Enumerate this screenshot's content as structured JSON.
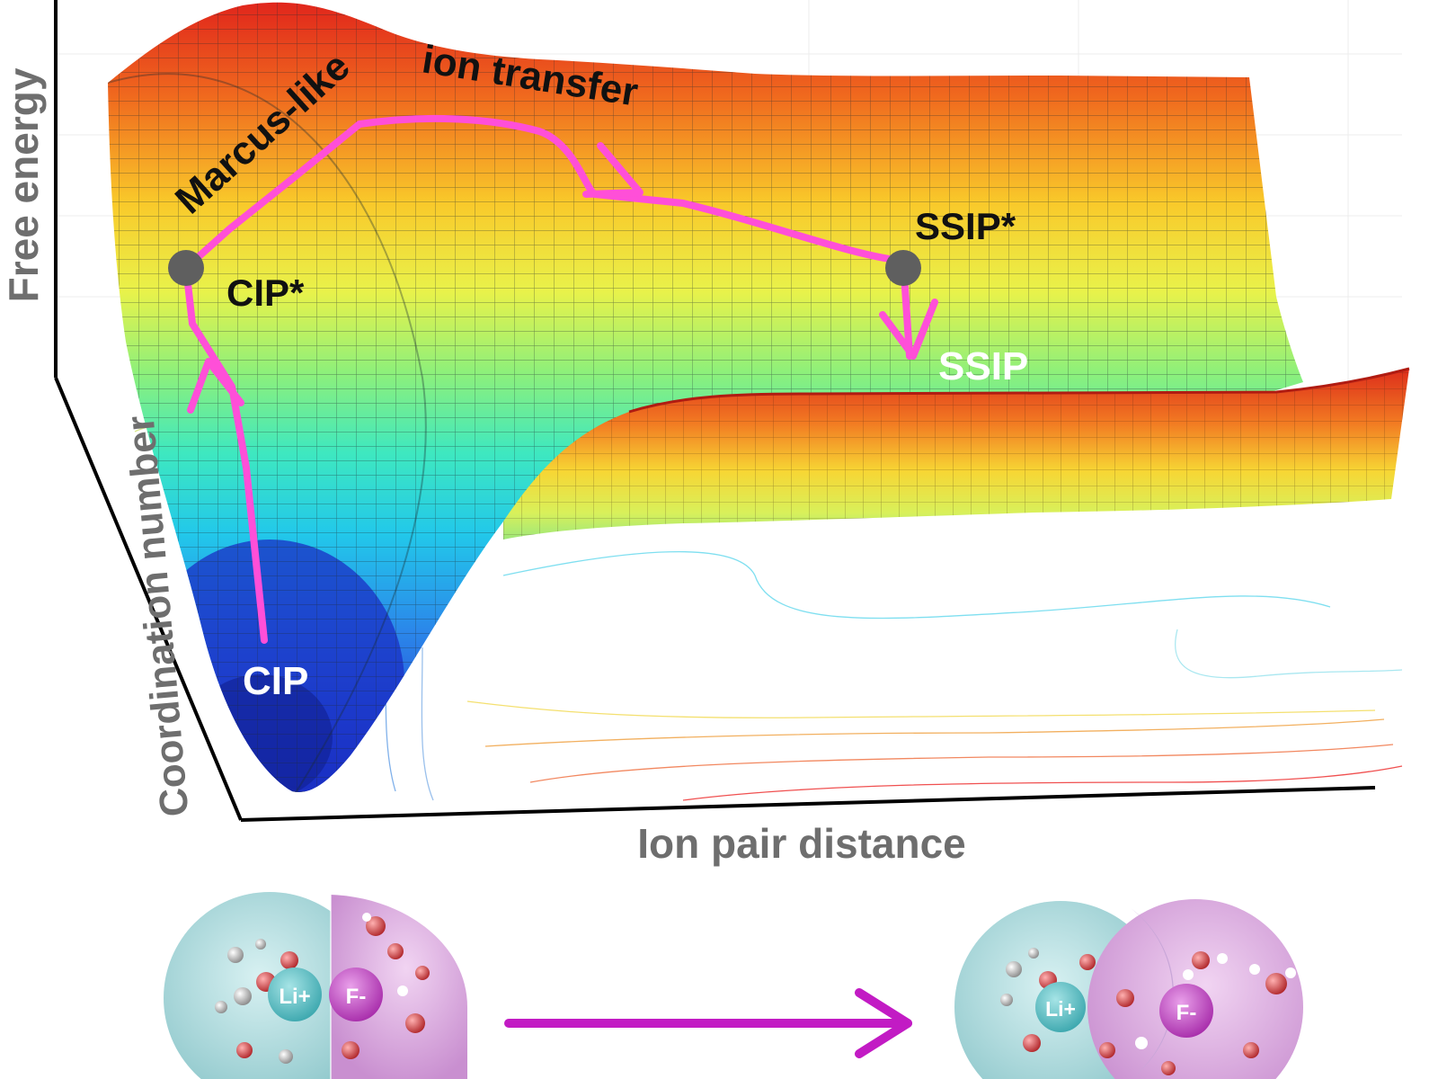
{
  "axes": {
    "z_label": "Free energy",
    "y_label": "Coordination number",
    "x_label": "Ion pair distance"
  },
  "annotations": {
    "path_label_1": "Marcus-like",
    "path_label_2": "ion transfer",
    "cip_star": "CIP*",
    "ssip_star": "SSIP*",
    "ssip": "SSIP",
    "cip": "CIP"
  },
  "ions": {
    "cation": "Li+",
    "anion": "F-"
  },
  "colors": {
    "pathway": "#ff4fd8",
    "arrow": "#c21bc4",
    "state_marker": "#5f5f5f",
    "cation_shell": "#9fd3d6",
    "anion_shell": "#d9a0dc",
    "axis": "#000000"
  }
}
